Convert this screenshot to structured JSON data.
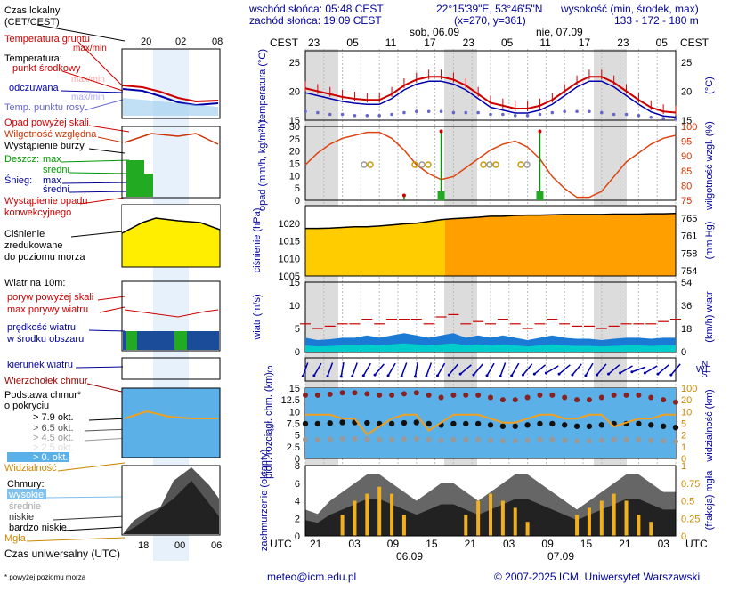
{
  "header": {
    "sunrise": "wschód słońca: 05:48 CEST",
    "sunset": "zachód słońca: 19:09 CEST",
    "coords": "22°15'39\"E, 53°46'5\"N",
    "grid": "(x=270, y=361)",
    "elev_label": "wysokość (min, środek, max)",
    "elev_values": "133 - 172 - 180 m"
  },
  "footer": {
    "email": "meteo@icm.edu.pl",
    "copyright": "© 2007-2025 ICM, Uniwersytet Warszawski",
    "note": "* powyżej poziomu morza"
  },
  "legend": {
    "time_local": "Czas lokalny",
    "time_local2": "(CET/CEST)",
    "soil_temp": "Temperatura gruntu",
    "maxmin": "max/min",
    "temperature": "Temperatura:",
    "mid_point": "punkt środkowy",
    "maxmin2": "max/min",
    "felt": "odczuwana",
    "maxmin3": "max/min",
    "dew": "Temp. punktu rosy",
    "precip_over": "Opad powyżej skali",
    "humidity": "Wilgotność względna",
    "storm": "Wystąpienie burzy",
    "rain": "Deszcz:",
    "max": "max",
    "mean": "średni",
    "snow": "Śnieg:",
    "conv": "Wystąpienie opadu",
    "conv2": "konwekcyjnego",
    "pressure1": "Ciśnienie",
    "pressure2": "zredukowane",
    "pressure3": "do poziomu morza",
    "wind10": "Wiatr na 10m:",
    "gust_over": "poryw powyżej skali",
    "gust_max": "max porywy wiatru",
    "wind_speed": "prędkość wiatru",
    "wind_mid": "w środku obszaru",
    "wind_dir": "kierunek wiatru",
    "cloud_top": "Wierzchołek chmur",
    "cloud_base": "Podstawa chmur*",
    "cloud_base2": "o pokryciu",
    "okt79": "> 7.9 okt.",
    "okt65": "> 6.5 okt.",
    "okt45": "> 4.5 okt.",
    "okt25": "> 2.5 okt.",
    "okt0": "> 0. okt.",
    "visibility": "Widzialność",
    "clouds": "Chmury:",
    "high": "wysokie",
    "middle": "średnie",
    "low": "niskie",
    "very_low": "bardzo niskie",
    "fog": "Mgła",
    "utc_label": "Czas uniwersalny (UTC)"
  },
  "axes": {
    "cest": "CEST",
    "utc": "UTC",
    "top_hours": [
      "23",
      "05",
      "11",
      "17",
      "23",
      "05",
      "11",
      "17",
      "23",
      "05"
    ],
    "bottom_hours": [
      "21",
      "03",
      "09",
      "15",
      "21",
      "03",
      "09",
      "15",
      "21",
      "03"
    ],
    "day1_top": "sob, 06.09",
    "day2_top": "nie, 07.09",
    "day1_bottom": "06.09",
    "day2_bottom": "07.09",
    "small_top": [
      "20",
      "02",
      "08"
    ],
    "small_bottom": [
      "18",
      "00",
      "06"
    ],
    "temp_left": "temperatura (°C)",
    "temp_right": "(°C)",
    "precip_left": "opad (mm/h, kg/m²h)",
    "precip_right": "wilgotność wzgl. (%)",
    "press_left": "ciśnienie (hPa)",
    "press_right": "(mm Hg)",
    "wind_left": "wiatr (m/s)",
    "wind_right": "(km/h) wiatr",
    "cloud_left": "pion. rozciągł. chm. (km)",
    "cloud_right": "widzialność (km)",
    "cover_left": "zachmurzenie (oktanty)",
    "cover_right": "(frakcja) mgła"
  },
  "chart_data": [
    {
      "type": "line",
      "title": "temperatura",
      "ylabel": "temperatura (°C)",
      "ylim": [
        15,
        27
      ],
      "ticks": [
        15,
        20,
        25
      ],
      "series": [
        {
          "name": "punkt środkowy",
          "color": "#cc0000",
          "values": [
            20.5,
            20,
            19.5,
            19,
            18.7,
            18.5,
            18.5,
            19.5,
            21,
            22,
            22.5,
            22.5,
            22,
            21,
            19.5,
            18,
            17.5,
            17,
            17,
            17.5,
            18.5,
            20,
            21.5,
            22.5,
            22.5,
            21.5,
            20,
            18.5,
            17.2,
            16.5,
            16.3
          ]
        },
        {
          "name": "Temp. punktu rosy",
          "color": "#6666cc",
          "values": [
            16.5,
            16.3,
            16,
            16,
            15.8,
            15.8,
            15.8,
            16,
            16.3,
            16.5,
            16.5,
            16.5,
            16.3,
            16.3,
            16.3,
            16,
            16,
            15.8,
            15.8,
            16,
            16.3,
            16.5,
            16.5,
            16.5,
            16.3,
            16,
            16,
            15.8,
            15.5,
            15.3,
            15.2
          ]
        }
      ]
    },
    {
      "type": "bar",
      "title": "opad",
      "ylim": [
        0,
        30
      ],
      "ticks": [
        0,
        5,
        10,
        15,
        20,
        25,
        30
      ],
      "right_ticks": [
        75,
        80,
        85,
        90,
        95,
        100
      ],
      "humidity": [
        87,
        91,
        94,
        96,
        97,
        98,
        98,
        96,
        92,
        87,
        84,
        82,
        83,
        86,
        89,
        92,
        94,
        95,
        93,
        89,
        83,
        79,
        76,
        76,
        78,
        83,
        88,
        91,
        94,
        96,
        97
      ],
      "precip_max": [
        0,
        0,
        0,
        0,
        0,
        0,
        0,
        0,
        2,
        0,
        0,
        28,
        0,
        0,
        0,
        0,
        0,
        0,
        0,
        28,
        0,
        0,
        0,
        0,
        0,
        0,
        0,
        0,
        0,
        0,
        0
      ],
      "precip_mean": [
        0,
        0,
        0,
        0,
        0,
        0,
        0,
        0,
        0,
        0,
        0,
        2,
        0,
        0,
        0,
        0,
        0,
        0,
        0,
        2,
        0,
        0,
        0,
        0,
        0,
        0,
        0,
        0,
        0,
        0,
        0
      ]
    },
    {
      "type": "area",
      "title": "ciśnienie",
      "ylim": [
        1005,
        1025
      ],
      "ticks": [
        1005,
        1010,
        1015,
        1020
      ],
      "right_ticks": [
        754,
        758,
        761,
        765
      ],
      "values": [
        1018.5,
        1018.5,
        1018.6,
        1018.8,
        1019,
        1019,
        1019.2,
        1019.5,
        1019.8,
        1020,
        1020.5,
        1021,
        1021.3,
        1021.5,
        1021.7,
        1022,
        1022,
        1022.2,
        1022.3,
        1022.3,
        1022.4,
        1022.5,
        1022.5,
        1022.5,
        1022.5,
        1022.6,
        1022.6,
        1022.6,
        1022.7,
        1022.7,
        1022.8
      ]
    },
    {
      "type": "area",
      "title": "wiatr",
      "ylim": [
        0,
        15
      ],
      "ticks": [
        0,
        5,
        10,
        15
      ],
      "right_ticks": [
        0,
        18,
        36,
        54
      ],
      "speed": [
        3,
        2.5,
        2.7,
        3,
        3,
        3.5,
        3,
        3.5,
        4,
        3.5,
        3,
        3.5,
        4,
        3,
        3.5,
        3,
        3.5,
        3,
        2.5,
        3,
        3.5,
        3,
        2.8,
        2.8,
        2.5,
        2.8,
        3,
        3,
        2.8,
        3,
        3
      ],
      "gust": [
        6,
        5,
        5.5,
        6,
        6,
        7,
        6,
        7,
        7,
        7,
        6,
        7.5,
        8,
        6,
        6.5,
        6,
        7,
        6,
        5,
        6,
        7,
        6,
        5.5,
        5.5,
        5,
        5.5,
        6,
        6,
        6,
        6.5,
        7
      ]
    },
    {
      "type": "scatter",
      "title": "kierunek wiatru",
      "directions": [
        200,
        210,
        200,
        190,
        200,
        210,
        220,
        210,
        200,
        190,
        200,
        210,
        220,
        230,
        220,
        210,
        200,
        210,
        220,
        230,
        240,
        230,
        220,
        210,
        220,
        230,
        240,
        250,
        240,
        230,
        220
      ]
    },
    {
      "type": "line",
      "title": "chmury",
      "ylim": [
        0,
        15
      ],
      "ticks": [
        0,
        2.5,
        5,
        7.5,
        10,
        12.5,
        15
      ],
      "right_ticks": [
        0,
        1,
        2,
        5,
        10,
        20,
        100
      ],
      "cloud_top": [
        13.5,
        13.5,
        13.7,
        14,
        14,
        13.8,
        13.5,
        13.5,
        13.8,
        14,
        13.5,
        13,
        13.5,
        13.5,
        13.5,
        13,
        12.5,
        12.5,
        13,
        13.5,
        13.5,
        13,
        12.5,
        12.5,
        13,
        13.5,
        13.5,
        13.5,
        13,
        12.5,
        12
      ],
      "visibility": [
        11,
        11,
        11,
        10,
        10,
        6,
        8,
        10,
        11,
        11,
        7,
        9,
        11,
        11,
        11,
        10,
        9,
        9,
        10,
        11,
        11,
        10,
        10,
        11,
        11,
        8,
        9,
        10,
        10,
        11,
        11
      ]
    },
    {
      "type": "area",
      "title": "zachmurzenie",
      "ylim": [
        0,
        8
      ],
      "ticks": [
        0,
        2,
        4,
        6,
        8
      ],
      "right_ticks": [
        0,
        0.25,
        0.5,
        0.75,
        1
      ],
      "low_clouds": [
        3,
        2.5,
        4,
        5,
        6,
        7,
        7,
        6,
        5,
        4,
        5,
        6,
        6,
        5,
        4,
        5,
        6,
        7,
        7,
        6,
        5,
        4,
        3,
        4,
        5,
        6,
        7,
        7,
        6,
        5,
        5
      ],
      "fog": [
        0,
        0,
        0,
        0.3,
        0.5,
        0.6,
        0.7,
        0.6,
        0.3,
        0,
        0,
        0,
        0,
        0.3,
        0.5,
        0.6,
        0.5,
        0.4,
        0.2,
        0,
        0,
        0,
        0.3,
        0.4,
        0.5,
        0.6,
        0.5,
        0.3,
        0.2,
        0,
        0
      ]
    }
  ]
}
